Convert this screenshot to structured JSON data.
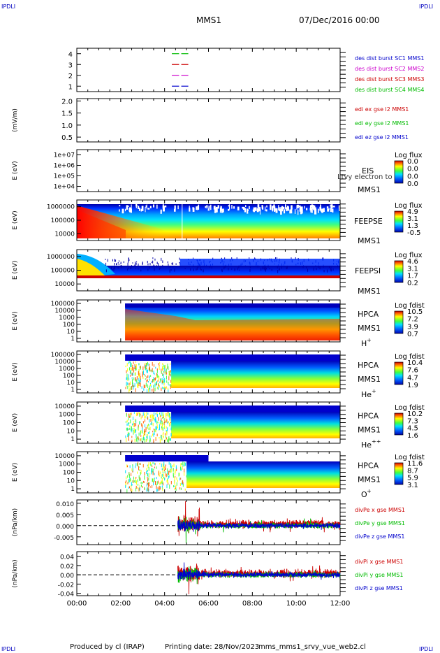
{
  "corner_label": "IPDLI",
  "header": {
    "spacecraft": "MMS1",
    "date": "07/Dec/2016 00:00"
  },
  "footer": {
    "produced_by": "Produced by cl (IRAP)",
    "printing_date": "Printing date: 28/Nov/2023",
    "plot_name": "mms_mms1_srvy_vue_web2.cl"
  },
  "colors": {
    "mms1": "#0000cc",
    "mms2": "#cc00cc",
    "mms3": "#cc0000",
    "mms4": "#00bb00",
    "ex": "#cc0000",
    "ey": "#00bb00",
    "ez": "#0000cc",
    "corner": "#0000c0"
  },
  "chart_data": [
    {
      "type": "line",
      "panel": "burst",
      "yticks": [
        "1",
        "2",
        "3",
        "4"
      ],
      "ylim": [
        0.5,
        4.5
      ],
      "series": [
        {
          "name": "des dist burst SC1 MMS1",
          "level": 1,
          "color": "#0000cc",
          "segments": [
            [
              4.33,
              4.66
            ],
            [
              4.76,
              5.08
            ]
          ]
        },
        {
          "name": "des dist burst SC2 MMS2",
          "level": 2,
          "color": "#cc00cc",
          "segments": [
            [
              4.33,
              4.66
            ],
            [
              4.76,
              5.08
            ]
          ]
        },
        {
          "name": "des dist burst SC3 MMS3",
          "level": 3,
          "color": "#cc0000",
          "segments": [
            [
              4.33,
              4.66
            ],
            [
              4.76,
              5.08
            ]
          ]
        },
        {
          "name": "des dist burst SC4 MMS4",
          "level": 4,
          "color": "#00bb00",
          "segments": [
            [
              4.33,
              4.66
            ],
            [
              4.76,
              5.08
            ]
          ]
        }
      ]
    },
    {
      "type": "line",
      "panel": "edi",
      "ylabel": "(mV/m)",
      "yticks": [
        "0.5",
        "1.0",
        "1.5",
        "2.0"
      ],
      "ylim": [
        0.3,
        2.1
      ],
      "series": [
        {
          "name": "edi ex gse l2 MMS1",
          "color": "#cc0000"
        },
        {
          "name": "edi ey gse l2 MMS1",
          "color": "#00bb00"
        },
        {
          "name": "edi ez gse l2 MMS1",
          "color": "#0000cc"
        }
      ]
    },
    {
      "type": "heatmap",
      "panel": "eis",
      "ylabel": "E (eV)",
      "yticks": [
        "1e+04",
        "1e+05",
        "1e+06",
        "1e+07"
      ],
      "instrument": "EIS",
      "sc": "MMS1",
      "note": "Ltvy electron to",
      "colorbar": {
        "title": "Log flux",
        "ticks": [
          "0.0",
          "0.0",
          "0.0",
          "0.0"
        ]
      },
      "coverage": []
    },
    {
      "type": "heatmap",
      "panel": "feepse",
      "ylabel": "E (eV)",
      "yticks": [
        "10000",
        "100000",
        "1000000"
      ],
      "instrument": "FEEPSE",
      "sc": "MMS1",
      "colorbar": {
        "title": "Log flux",
        "ticks": [
          "4.9",
          "3.1",
          "1.3",
          "-0.5"
        ]
      },
      "coverage": [
        0,
        12
      ]
    },
    {
      "type": "heatmap",
      "panel": "feepsi",
      "ylabel": "E (eV)",
      "yticks": [
        "10000",
        "100000",
        "1000000"
      ],
      "instrument": "FEEPSI",
      "sc": "MMS1",
      "colorbar": {
        "title": "Log flux",
        "ticks": [
          "4.6",
          "3.1",
          "1.7",
          "0.2"
        ]
      },
      "coverage": [
        0,
        12
      ]
    },
    {
      "type": "heatmap",
      "panel": "hpca_h",
      "ylabel": "E (eV)",
      "yticks": [
        "1",
        "10",
        "100",
        "1000",
        "10000",
        "100000"
      ],
      "instrument": "HPCA",
      "sc": "MMS1",
      "species": "H",
      "charge": "+",
      "colorbar": {
        "title": "Log fdist",
        "ticks": [
          "10.5",
          "7.2",
          "3.9",
          "0.7"
        ]
      },
      "coverage": [
        2.2,
        12
      ]
    },
    {
      "type": "heatmap",
      "panel": "hpca_he",
      "ylabel": "E (eV)",
      "yticks": [
        "1",
        "10",
        "100",
        "1000",
        "10000",
        "100000"
      ],
      "instrument": "HPCA",
      "sc": "MMS1",
      "species": "He",
      "charge": "+",
      "colorbar": {
        "title": "Log fdist",
        "ticks": [
          "10.4",
          "7.6",
          "4.7",
          "1.9"
        ]
      },
      "coverage": [
        2.2,
        12
      ]
    },
    {
      "type": "heatmap",
      "panel": "hpca_hepp",
      "ylabel": "E (eV)",
      "yticks": [
        "1",
        "10",
        "100",
        "1000",
        "10000"
      ],
      "instrument": "HPCA",
      "sc": "MMS1",
      "species": "He",
      "charge": "++",
      "colorbar": {
        "title": "Log fdist",
        "ticks": [
          "10.2",
          "7.3",
          "4.5",
          "1.6"
        ]
      },
      "coverage": [
        2.2,
        12
      ]
    },
    {
      "type": "heatmap",
      "panel": "hpca_o",
      "ylabel": "E (eV)",
      "yticks": [
        "1",
        "10",
        "100",
        "1000",
        "10000"
      ],
      "instrument": "HPCA",
      "sc": "MMS1",
      "species": "O",
      "charge": "+",
      "colorbar": {
        "title": "Log fdist",
        "ticks": [
          "11.6",
          "8.7",
          "5.9",
          "3.1"
        ]
      },
      "coverage": [
        2.2,
        12
      ]
    },
    {
      "type": "line",
      "panel": "divpe",
      "ylabel": "(nPa/km)",
      "yticks": [
        "-0.005",
        "0.000",
        "0.005",
        "0.010"
      ],
      "ylim": [
        -0.0085,
        0.0115
      ],
      "series": [
        {
          "name": "divPe x gse MMS1",
          "color": "#cc0000"
        },
        {
          "name": "divPe y gse MMS1",
          "color": "#00bb00"
        },
        {
          "name": "divPe z gse MMS1",
          "color": "#0000cc"
        }
      ],
      "start": 4.6
    },
    {
      "type": "line",
      "panel": "divpi",
      "ylabel": "(nPa/km)",
      "yticks": [
        "-0.04",
        "-0.02",
        "0.00",
        "0.02",
        "0.04"
      ],
      "ylim": [
        -0.045,
        0.05
      ],
      "series": [
        {
          "name": "divPi x gse MMS1",
          "color": "#cc0000"
        },
        {
          "name": "divPi y gse MMS1",
          "color": "#00bb00"
        },
        {
          "name": "divPi z gse MMS1",
          "color": "#0000cc"
        }
      ],
      "start": 4.6
    }
  ],
  "x_axis": {
    "ticks": [
      "00:00",
      "02:00",
      "04:00",
      "06:00",
      "08:00",
      "10:00",
      "12:00"
    ],
    "range_hours": [
      0,
      12
    ]
  }
}
